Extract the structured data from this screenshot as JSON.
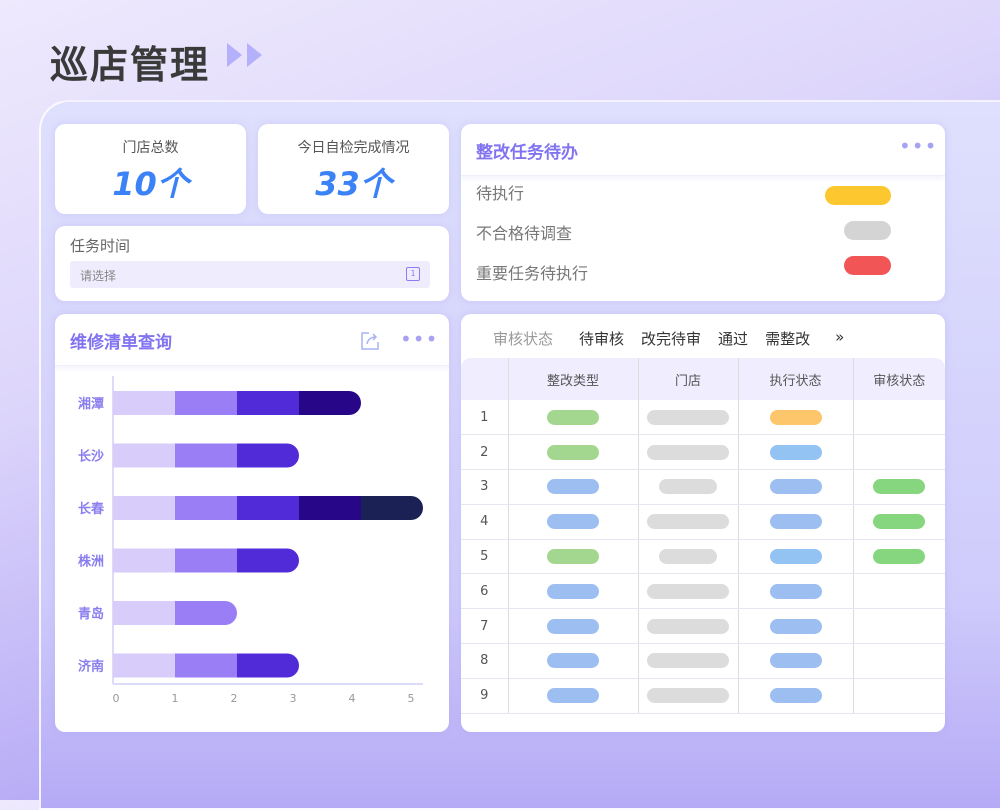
{
  "header": {
    "title": "巡店管理",
    "arrow_icon": "double-play-icon"
  },
  "stats": [
    {
      "label": "门店总数",
      "value": "10个"
    },
    {
      "label": "今日自检完成情况",
      "value": "33个"
    }
  ],
  "task_time": {
    "label": "任务时间",
    "placeholder": "请选择",
    "icon": "calendar-icon"
  },
  "todo": {
    "title": "整改任务待办",
    "items": [
      {
        "label": "待执行",
        "color": "#fdc82f"
      },
      {
        "label": "不合格待调查",
        "color": "#d4d4d4"
      },
      {
        "label": "重要任务待执行",
        "color": "#f25555"
      }
    ]
  },
  "chart_card": {
    "title": "维修清单查询"
  },
  "chart_data": {
    "type": "bar",
    "orientation": "horizontal",
    "stacked": true,
    "categories": [
      "湘潭",
      "长沙",
      "长春",
      "株洲",
      "青岛",
      "济南"
    ],
    "values": [
      4,
      3,
      5,
      3,
      2,
      3
    ],
    "segment_colors": [
      "#d8ccfa",
      "#9a7ef5",
      "#522bd8",
      "#270687",
      "#1b2055"
    ],
    "xlim": [
      0,
      5
    ],
    "xticks": [
      "0",
      "1",
      "2",
      "3",
      "4",
      "5"
    ],
    "grid": false
  },
  "table": {
    "filter_label": "审核状态",
    "filters": [
      "待审核",
      "改完待审",
      "通过",
      "需整改"
    ],
    "more": "»",
    "columns": [
      "",
      "整改类型",
      "门店",
      "执行状态",
      "审核状态"
    ],
    "rows": [
      {
        "index": "1",
        "type": "#a3d78f",
        "store": "long",
        "exec": "#fdc66a",
        "audit": null
      },
      {
        "index": "2",
        "type": "#a3d78f",
        "store": "long",
        "exec": "#92c3f2",
        "audit": null
      },
      {
        "index": "3",
        "type": "#9dbef0",
        "store": "short",
        "exec": "#9dbef0",
        "audit": "#86d67f"
      },
      {
        "index": "4",
        "type": "#9dbef0",
        "store": "long",
        "exec": "#9dbef0",
        "audit": "#86d67f"
      },
      {
        "index": "5",
        "type": "#a3d78f",
        "store": "short",
        "exec": "#92c3f2",
        "audit": "#86d67f"
      },
      {
        "index": "6",
        "type": "#9dbef0",
        "store": "long",
        "exec": "#9dbef0",
        "audit": null
      },
      {
        "index": "7",
        "type": "#9dbef0",
        "store": "long",
        "exec": "#9dbef0",
        "audit": null
      },
      {
        "index": "8",
        "type": "#9dbef0",
        "store": "long",
        "exec": "#9dbef0",
        "audit": null
      },
      {
        "index": "9",
        "type": "#9dbef0",
        "store": "long",
        "exec": "#9dbef0",
        "audit": null
      }
    ]
  }
}
